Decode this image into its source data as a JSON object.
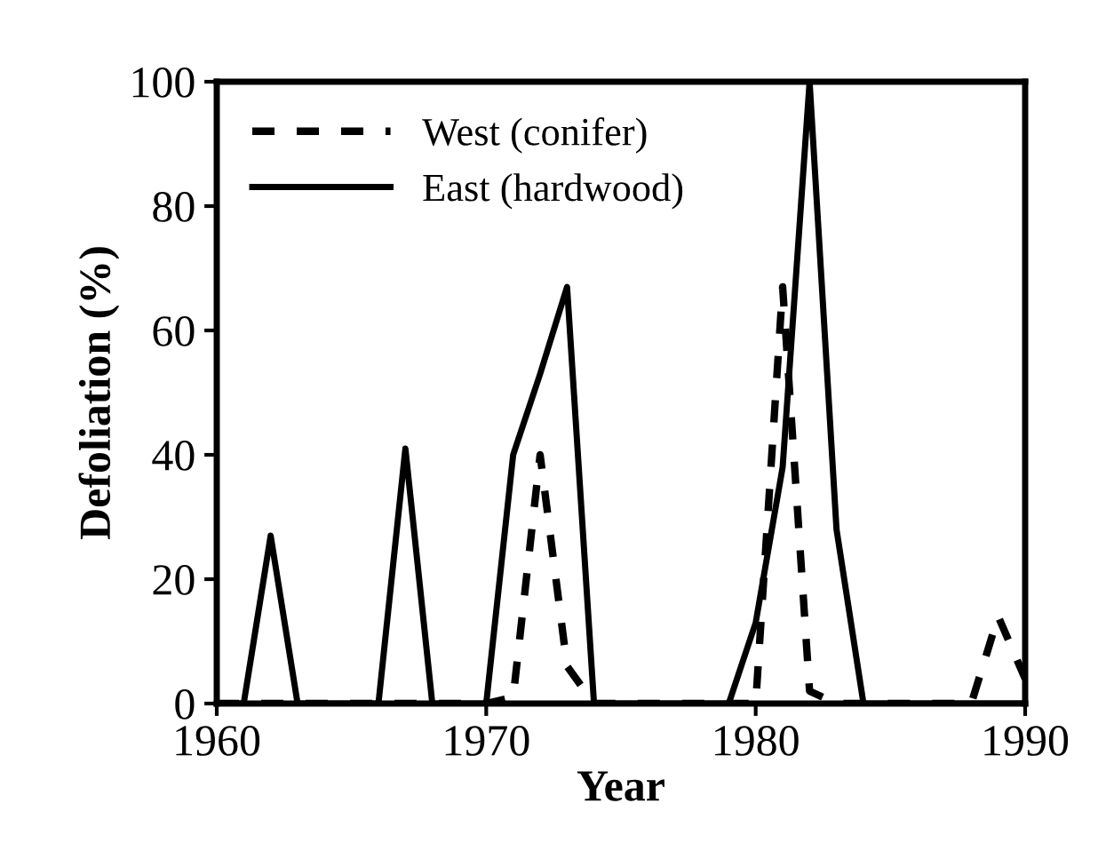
{
  "chart_data": {
    "type": "line",
    "xlabel": "Year",
    "ylabel": "Defoliation (%)",
    "x": [
      1960,
      1961,
      1962,
      1963,
      1964,
      1965,
      1966,
      1967,
      1968,
      1969,
      1970,
      1971,
      1972,
      1973,
      1974,
      1975,
      1976,
      1977,
      1978,
      1979,
      1980,
      1981,
      1982,
      1983,
      1984,
      1985,
      1986,
      1987,
      1988,
      1989,
      1990
    ],
    "series": [
      {
        "name": "West (conifer)",
        "color": "#000000",
        "line_style": "dashed",
        "values": [
          0,
          0,
          0,
          0,
          0,
          0,
          0,
          0,
          0,
          0,
          0,
          1,
          40,
          6,
          0,
          0,
          0,
          0,
          0,
          0,
          0,
          67,
          2,
          0,
          0,
          0,
          0,
          0,
          0,
          14,
          4
        ]
      },
      {
        "name": "East (hardwood)",
        "color": "#000000",
        "line_style": "solid",
        "values": [
          0,
          0,
          27,
          0,
          0,
          0,
          0,
          41,
          0,
          0,
          0,
          40,
          53,
          67,
          0,
          0,
          0,
          0,
          0,
          0,
          13,
          38,
          100,
          28,
          0,
          0,
          0,
          0,
          0,
          0,
          0
        ]
      }
    ],
    "xlim": [
      1960,
      1990
    ],
    "xticks": [
      1960,
      1970,
      1980,
      1990
    ],
    "ylim": [
      0,
      100
    ],
    "yticks": [
      0,
      20,
      40,
      60,
      80,
      100
    ],
    "grid": false,
    "legend": "top left",
    "marker": "none"
  }
}
